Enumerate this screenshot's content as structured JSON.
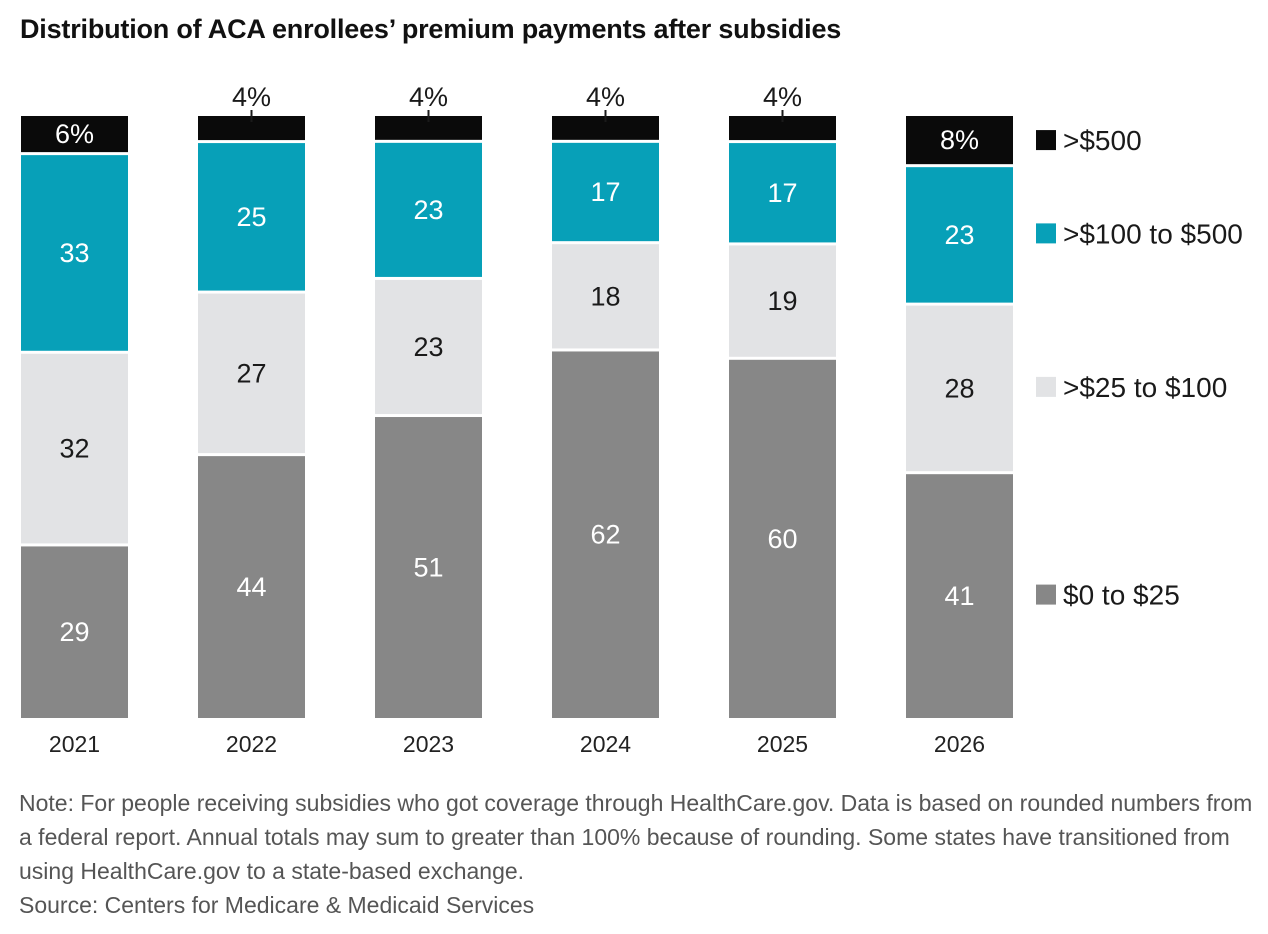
{
  "chart_data": {
    "type": "bar",
    "stacked": true,
    "percent": true,
    "title": "Distribution of ACA enrollees’ premium payments after subsidies",
    "categories": [
      "2021",
      "2022",
      "2023",
      "2024",
      "2025",
      "2026"
    ],
    "series": [
      {
        "name": "$0 to $25",
        "color": "#878787",
        "label_color": "#ffffff",
        "values": [
          29,
          44,
          51,
          62,
          60,
          41
        ],
        "labels": [
          "29",
          "44",
          "51",
          "62",
          "60",
          "41"
        ]
      },
      {
        "name": ">$25 to $100",
        "color": "#e2e3e5",
        "label_color": "#1a1a1a",
        "values": [
          32,
          27,
          23,
          18,
          19,
          28
        ],
        "labels": [
          "32",
          "27",
          "23",
          "18",
          "19",
          "28"
        ]
      },
      {
        "name": ">$100 to $500",
        "color": "#07a0b8",
        "label_color": "#ffffff",
        "values": [
          33,
          25,
          23,
          17,
          17,
          23
        ],
        "labels": [
          "33",
          "25",
          "23",
          "17",
          "17",
          "23"
        ]
      },
      {
        "name": ">$500",
        "color": "#0a0a0a",
        "label_color": "#ffffff",
        "values": [
          6,
          4,
          4,
          4,
          4,
          8
        ],
        "labels": [
          "6%",
          "4%",
          "4%",
          "4%",
          "4%",
          "8%"
        ]
      }
    ],
    "legend": [
      "$0 to $25",
      ">$25 to $100",
      ">$100 to $500",
      ">$500"
    ],
    "legend_position": "right",
    "xlabel": "",
    "ylabel": "",
    "ylim": [
      0,
      100
    ],
    "grid": false
  },
  "footnote": {
    "note": "Note: For people receiving subsidies who got coverage through HealthCare.gov. Data is based on rounded numbers from a federal report. Annual totals may sum to greater than 100% because of rounding. Some states have transitioned from using HealthCare.gov to a state-based exchange.",
    "source": "Source: Centers for Medicare & Medicaid Services"
  }
}
